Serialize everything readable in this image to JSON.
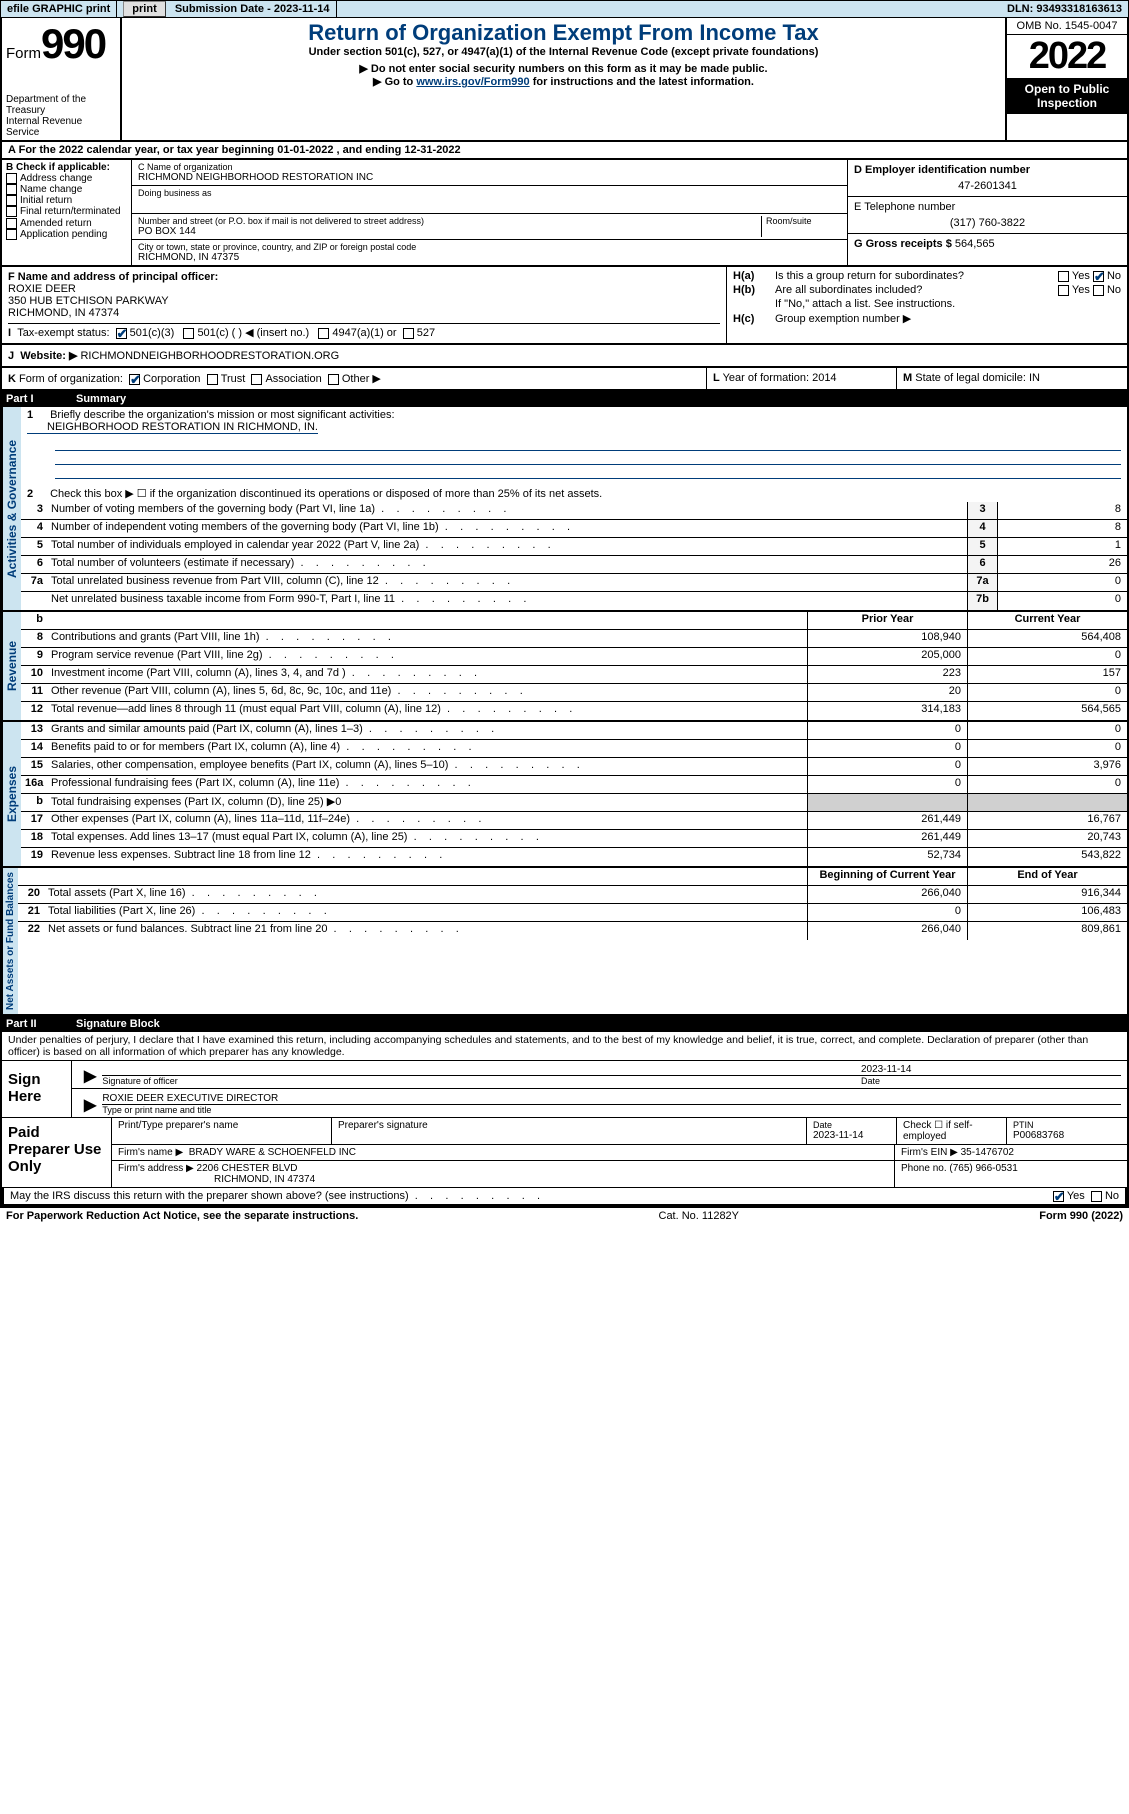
{
  "topbar": {
    "efile": "efile GRAPHIC print",
    "subdate_label": "Submission Date - ",
    "subdate": "2023-11-14",
    "dln_label": "DLN: ",
    "dln": "93493318163613"
  },
  "header": {
    "form_word": "Form",
    "form_num": "990",
    "dept1": "Department of the Treasury",
    "dept2": "Internal Revenue Service",
    "title": "Return of Organization Exempt From Income Tax",
    "sub1": "Under section 501(c), 527, or 4947(a)(1) of the Internal Revenue Code (except private foundations)",
    "sub2": "▶ Do not enter social security numbers on this form as it may be made public.",
    "sub3_pre": "▶ Go to ",
    "sub3_link": "www.irs.gov/Form990",
    "sub3_post": " for instructions and the latest information.",
    "omb": "OMB No. 1545-0047",
    "year": "2022",
    "open": "Open to Public Inspection"
  },
  "rowA": {
    "label": "A",
    "text": " For the 2022 calendar year, or tax year beginning ",
    "begin": "01-01-2022",
    "mid": "   , and ending ",
    "end": "12-31-2022"
  },
  "B": {
    "label": "B Check if applicable:",
    "items": [
      "Address change",
      "Name change",
      "Initial return",
      "Final return/terminated",
      "Amended return",
      "Application pending"
    ]
  },
  "C": {
    "name_label": "C Name of organization",
    "name": "RICHMOND NEIGHBORHOOD RESTORATION INC",
    "dba": "Doing business as",
    "street_label": "Number and street (or P.O. box if mail is not delivered to street address)",
    "room_label": "Room/suite",
    "street": "PO BOX 144",
    "city_label": "City or town, state or province, country, and ZIP or foreign postal code",
    "city": "RICHMOND, IN  47375"
  },
  "D": {
    "label": "D Employer identification number",
    "val": "47-2601341"
  },
  "E": {
    "label": "E Telephone number",
    "val": "(317) 760-3822"
  },
  "G": {
    "label": "G Gross receipts $ ",
    "val": "564,565"
  },
  "F": {
    "label": "F  Name and address of principal officer:",
    "name": "ROXIE DEER",
    "addr1": "350 HUB ETCHISON PARKWAY",
    "addr2": "RICHMOND, IN  47374"
  },
  "H": {
    "a_label": "H(a)",
    "a_text": "Is this a group return for subordinates?",
    "b_label": "H(b)",
    "b_text": "Are all subordinates included?",
    "b_note": "If \"No,\" attach a list. See instructions.",
    "c_label": "H(c)",
    "c_text": "Group exemption number ▶",
    "yes": "Yes",
    "no": "No"
  },
  "I": {
    "label": "I",
    "text": "Tax-exempt status:",
    "opts": [
      "501(c)(3)",
      "501(c) (  ) ◀ (insert no.)",
      "4947(a)(1) or",
      "527"
    ]
  },
  "J": {
    "label": "J",
    "text": "Website: ▶",
    "val": "RICHMONDNEIGHBORHOODRESTORATION.ORG"
  },
  "K": {
    "label": "K",
    "text": "Form of organization:",
    "opts": [
      "Corporation",
      "Trust",
      "Association",
      "Other ▶"
    ]
  },
  "L": {
    "label": "L",
    "text": "Year of formation: ",
    "val": "2014"
  },
  "M": {
    "label": "M",
    "text": "State of legal domicile: ",
    "val": "IN"
  },
  "partI": {
    "num": "Part I",
    "title": "Summary"
  },
  "sections": {
    "ag": "Activities & Governance",
    "rev": "Revenue",
    "exp": "Expenses",
    "na": "Net Assets or Fund Balances"
  },
  "summary": {
    "l1_num": "1",
    "l1": "Briefly describe the organization's mission or most significant activities:",
    "l1_val": "NEIGHBORHOOD RESTORATION IN RICHMOND, IN.",
    "l2_num": "2",
    "l2": "Check this box ▶ ☐  if the organization discontinued its operations or disposed of more than 25% of its net assets.",
    "rows_ag": [
      {
        "n": "3",
        "t": "Number of voting members of the governing body (Part VI, line 1a)",
        "b": "3",
        "v": "8"
      },
      {
        "n": "4",
        "t": "Number of independent voting members of the governing body (Part VI, line 1b)",
        "b": "4",
        "v": "8"
      },
      {
        "n": "5",
        "t": "Total number of individuals employed in calendar year 2022 (Part V, line 2a)",
        "b": "5",
        "v": "1"
      },
      {
        "n": "6",
        "t": "Total number of volunteers (estimate if necessary)",
        "b": "6",
        "v": "26"
      },
      {
        "n": "7a",
        "t": "Total unrelated business revenue from Part VIII, column (C), line 12",
        "b": "7a",
        "v": "0"
      },
      {
        "n": "",
        "t": "Net unrelated business taxable income from Form 990-T, Part I, line 11",
        "b": "7b",
        "v": "0"
      }
    ],
    "hdr_b": "b",
    "hdr_prior": "Prior Year",
    "hdr_curr": "Current Year",
    "rows_rev": [
      {
        "n": "8",
        "t": "Contributions and grants (Part VIII, line 1h)",
        "p": "108,940",
        "c": "564,408"
      },
      {
        "n": "9",
        "t": "Program service revenue (Part VIII, line 2g)",
        "p": "205,000",
        "c": "0"
      },
      {
        "n": "10",
        "t": "Investment income (Part VIII, column (A), lines 3, 4, and 7d )",
        "p": "223",
        "c": "157"
      },
      {
        "n": "11",
        "t": "Other revenue (Part VIII, column (A), lines 5, 6d, 8c, 9c, 10c, and 11e)",
        "p": "20",
        "c": "0"
      },
      {
        "n": "12",
        "t": "Total revenue—add lines 8 through 11 (must equal Part VIII, column (A), line 12)",
        "p": "314,183",
        "c": "564,565"
      }
    ],
    "rows_exp": [
      {
        "n": "13",
        "t": "Grants and similar amounts paid (Part IX, column (A), lines 1–3)",
        "p": "0",
        "c": "0"
      },
      {
        "n": "14",
        "t": "Benefits paid to or for members (Part IX, column (A), line 4)",
        "p": "0",
        "c": "0"
      },
      {
        "n": "15",
        "t": "Salaries, other compensation, employee benefits (Part IX, column (A), lines 5–10)",
        "p": "0",
        "c": "3,976"
      },
      {
        "n": "16a",
        "t": "Professional fundraising fees (Part IX, column (A), line 11e)",
        "p": "0",
        "c": "0"
      },
      {
        "n": "b",
        "t": "Total fundraising expenses (Part IX, column (D), line 25) ▶0",
        "p": "",
        "c": "",
        "grey": true
      },
      {
        "n": "17",
        "t": "Other expenses (Part IX, column (A), lines 11a–11d, 11f–24e)",
        "p": "261,449",
        "c": "16,767"
      },
      {
        "n": "18",
        "t": "Total expenses. Add lines 13–17 (must equal Part IX, column (A), line 25)",
        "p": "261,449",
        "c": "20,743"
      },
      {
        "n": "19",
        "t": "Revenue less expenses. Subtract line 18 from line 12",
        "p": "52,734",
        "c": "543,822"
      }
    ],
    "hdr_begin": "Beginning of Current Year",
    "hdr_end": "End of Year",
    "rows_na": [
      {
        "n": "20",
        "t": "Total assets (Part X, line 16)",
        "p": "266,040",
        "c": "916,344"
      },
      {
        "n": "21",
        "t": "Total liabilities (Part X, line 26)",
        "p": "0",
        "c": "106,483"
      },
      {
        "n": "22",
        "t": "Net assets or fund balances. Subtract line 21 from line 20",
        "p": "266,040",
        "c": "809,861"
      }
    ]
  },
  "partII": {
    "num": "Part II",
    "title": "Signature Block"
  },
  "sig": {
    "decl": "Under penalties of perjury, I declare that I have examined this return, including accompanying schedules and statements, and to the best of my knowledge and belief, it is true, correct, and complete. Declaration of preparer (other than officer) is based on all information of which preparer has any knowledge.",
    "sign_here": "Sign Here",
    "sig_officer": "Signature of officer",
    "date_label": "Date",
    "date": "2023-11-14",
    "officer": "ROXIE DEER  EXECUTIVE DIRECTOR",
    "type_name": "Type or print name and title",
    "paid": "Paid Preparer Use Only",
    "pt_name": "Print/Type preparer's name",
    "pt_sig": "Preparer's signature",
    "pt_date_l": "Date",
    "pt_date": "2023-11-14",
    "pt_check": "Check ☐ if self-employed",
    "ptin_l": "PTIN",
    "ptin": "P00683768",
    "firm_name_l": "Firm's name    ▶",
    "firm_name": "BRADY WARE & SCHOENFELD INC",
    "firm_ein_l": "Firm's EIN ▶ ",
    "firm_ein": "35-1476702",
    "firm_addr_l": "Firm's address ▶",
    "firm_addr1": "2206 CHESTER BLVD",
    "firm_addr2": "RICHMOND, IN  47374",
    "phone_l": "Phone no. ",
    "phone": "(765) 966-0531",
    "discuss": "May the IRS discuss this return with the preparer shown above? (see instructions)",
    "yes": "Yes",
    "no": "No"
  },
  "footer": {
    "paperwork": "For Paperwork Reduction Act Notice, see the separate instructions.",
    "cat": "Cat. No. 11282Y",
    "form": "Form 990 (2022)"
  }
}
